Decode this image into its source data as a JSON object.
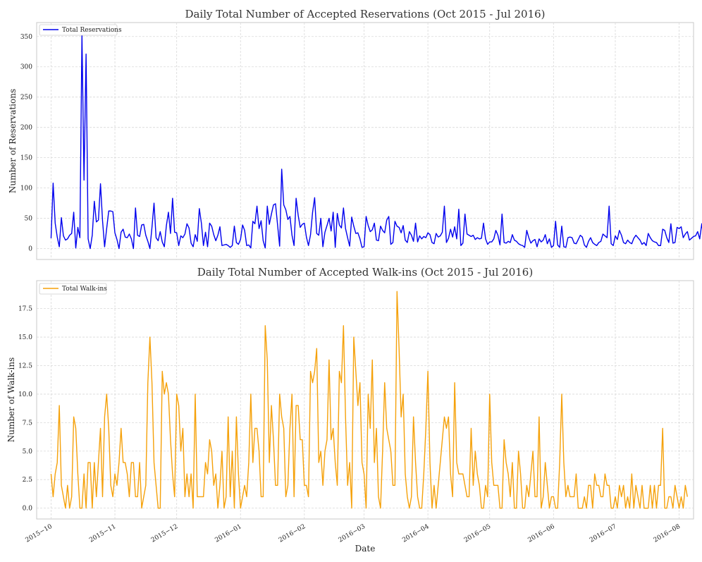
{
  "chart_data": [
    {
      "type": "line",
      "title": "Daily Total Number of Accepted Reservations (Oct 2015 - Jul 2016)",
      "xlabel": "",
      "ylabel": "Number of Reservations",
      "ylim": [
        -18,
        373
      ],
      "yticks": [
        0,
        50,
        100,
        150,
        200,
        250,
        300,
        350
      ],
      "ytick_labels": [
        "0",
        "50",
        "100",
        "150",
        "200",
        "250",
        "300",
        "350"
      ],
      "xlim": [
        "2015-09-24",
        "2016-08-08"
      ],
      "grid": true,
      "legend_position": "top-left",
      "series": [
        {
          "name": "Total Reservations",
          "color": "#0000ee",
          "x_start": "2015-10-01",
          "x_step_days": 1,
          "values": [
            17,
            108,
            42,
            19,
            3,
            51,
            21,
            14,
            16,
            22,
            25,
            60,
            1,
            35,
            18,
            352,
            113,
            321,
            16,
            0,
            22,
            78,
            44,
            47,
            107,
            46,
            3,
            33,
            62,
            62,
            61,
            26,
            15,
            0,
            27,
            32,
            19,
            18,
            24,
            16,
            0,
            67,
            22,
            20,
            39,
            40,
            22,
            12,
            0,
            35,
            75,
            18,
            13,
            28,
            11,
            3,
            38,
            60,
            25,
            83,
            27,
            26,
            5,
            21,
            18,
            24,
            41,
            34,
            9,
            3,
            23,
            12,
            66,
            42,
            5,
            27,
            3,
            42,
            37,
            23,
            13,
            22,
            36,
            5,
            6,
            7,
            5,
            2,
            5,
            37,
            10,
            7,
            15,
            39,
            30,
            5,
            6,
            1,
            45,
            41,
            70,
            33,
            46,
            13,
            1,
            70,
            40,
            57,
            72,
            74,
            39,
            4,
            131,
            72,
            64,
            48,
            53,
            22,
            5,
            83,
            55,
            35,
            40,
            42,
            19,
            5,
            23,
            60,
            84,
            25,
            22,
            50,
            3,
            27,
            38,
            50,
            29,
            60,
            2,
            58,
            39,
            34,
            67,
            33,
            18,
            4,
            52,
            37,
            25,
            26,
            16,
            2,
            3,
            53,
            38,
            28,
            31,
            42,
            14,
            13,
            37,
            30,
            26,
            47,
            53,
            7,
            10,
            45,
            37,
            35,
            26,
            38,
            14,
            10,
            28,
            22,
            12,
            42,
            11,
            21,
            16,
            20,
            18,
            26,
            23,
            10,
            8,
            25,
            19,
            21,
            27,
            70,
            10,
            17,
            32,
            19,
            36,
            16,
            65,
            5,
            9,
            57,
            24,
            22,
            20,
            22,
            15,
            18,
            16,
            17,
            42,
            16,
            7,
            11,
            11,
            16,
            30,
            22,
            6,
            57,
            10,
            9,
            12,
            10,
            23,
            14,
            12,
            8,
            6,
            5,
            2,
            30,
            18,
            9,
            13,
            15,
            3,
            16,
            11,
            14,
            23,
            8,
            16,
            2,
            5,
            45,
            6,
            2,
            37,
            3,
            2,
            18,
            19,
            18,
            9,
            8,
            15,
            22,
            19,
            6,
            2,
            12,
            18,
            10,
            7,
            5,
            10,
            12,
            24,
            21,
            18,
            70,
            8,
            5,
            21,
            15,
            30,
            22,
            10,
            8,
            14,
            10,
            8,
            17,
            22,
            18,
            14,
            7,
            10,
            5,
            25,
            18,
            13,
            11,
            10,
            5,
            5,
            32,
            30,
            18,
            10,
            41,
            9,
            10,
            35,
            33,
            36,
            18,
            24,
            28,
            14,
            17,
            20,
            21,
            28,
            16,
            41,
            16,
            8,
            11
          ],
          "data_note": "values approximated from the plotted line"
        }
      ]
    },
    {
      "type": "line",
      "title": "Daily Total Number of Accepted Walk-ins (Oct 2015 - Jul 2016)",
      "xlabel": "Date",
      "ylabel": "Number of Walk-ins",
      "ylim": [
        -0.95,
        19.95
      ],
      "yticks": [
        0,
        2.5,
        5,
        7.5,
        10,
        12.5,
        15,
        17.5
      ],
      "ytick_labels": [
        "0.0",
        "2.5",
        "5.0",
        "7.5",
        "10.0",
        "12.5",
        "15.0",
        "17.5"
      ],
      "xticks": [
        "2015-10-01",
        "2015-11-01",
        "2015-12-01",
        "2016-01-01",
        "2016-02-01",
        "2016-03-01",
        "2016-04-01",
        "2016-05-01",
        "2016-06-01",
        "2016-07-01",
        "2016-08-01"
      ],
      "xtick_labels": [
        "2015−10",
        "2015−11",
        "2015−12",
        "2016−01",
        "2016−02",
        "2016−03",
        "2016−04",
        "2016−05",
        "2016−06",
        "2016−07",
        "2016−08"
      ],
      "xlim": [
        "2015-09-24",
        "2016-08-08"
      ],
      "grid": true,
      "legend_position": "top-left",
      "series": [
        {
          "name": "Total Walk-ins",
          "color": "#f5a10a",
          "x_start": "2015-10-01",
          "x_step_days": 1,
          "values": [
            3,
            1,
            3,
            4,
            9,
            2,
            1,
            0,
            2,
            0,
            1,
            8,
            7,
            3,
            0,
            0,
            3,
            0,
            4,
            4,
            0,
            4,
            1,
            4,
            7,
            1,
            8,
            10,
            7,
            2,
            1,
            3,
            2,
            4,
            7,
            4,
            4,
            3,
            1,
            4,
            4,
            1,
            1,
            4,
            0,
            1,
            2,
            11,
            15,
            11,
            4,
            2,
            0,
            0,
            12,
            10,
            11,
            10,
            6,
            3,
            1,
            10,
            9,
            5,
            7,
            1,
            3,
            1,
            3,
            0,
            10,
            1,
            1,
            1,
            1,
            4,
            3,
            6,
            5,
            2,
            3,
            0,
            2,
            5,
            0,
            1,
            8,
            1,
            5,
            0,
            8,
            3,
            0,
            1,
            2,
            1,
            4,
            10,
            4,
            7,
            7,
            5,
            1,
            1,
            16,
            13,
            4,
            9,
            6,
            2,
            2,
            10,
            8,
            7,
            1,
            2,
            7,
            10,
            1,
            9,
            9,
            6,
            6,
            2,
            2,
            1,
            12,
            11,
            12,
            14,
            4,
            5,
            2,
            5,
            6,
            13,
            6,
            7,
            4,
            2,
            12,
            11,
            16,
            8,
            2,
            4,
            0,
            15,
            12,
            9,
            11,
            4,
            3,
            0,
            10,
            7,
            13,
            4,
            7,
            1,
            0,
            5,
            11,
            7,
            6,
            5,
            2,
            2,
            19,
            14,
            8,
            10,
            3,
            1,
            0,
            1,
            8,
            4,
            1,
            0,
            0,
            3,
            7,
            12,
            4,
            0,
            2,
            0,
            2,
            4,
            6,
            8,
            7,
            8,
            3,
            1,
            11,
            4,
            3,
            3,
            3,
            2,
            1,
            1,
            7,
            2,
            5,
            3,
            2,
            0,
            0,
            2,
            1,
            10,
            4,
            2,
            2,
            2,
            0,
            0,
            6,
            4,
            3,
            1,
            4,
            0,
            0,
            5,
            3,
            0,
            0,
            2,
            1,
            3,
            5,
            1,
            1,
            8,
            0,
            1,
            4,
            2,
            0,
            1,
            1,
            0,
            0,
            4,
            10,
            4,
            1,
            2,
            1,
            1,
            1,
            3,
            0,
            0,
            0,
            1,
            0,
            2,
            2,
            0,
            3,
            2,
            2,
            1,
            1,
            3,
            2,
            2,
            0,
            0,
            1,
            0,
            2,
            1,
            2,
            0,
            1,
            0,
            3,
            0,
            2,
            1,
            0,
            2,
            0,
            0,
            0,
            2,
            0,
            2,
            0,
            2,
            2,
            7,
            0,
            0,
            1,
            1,
            0,
            2,
            1,
            0,
            1,
            0,
            2,
            1
          ]
        }
      ]
    }
  ]
}
